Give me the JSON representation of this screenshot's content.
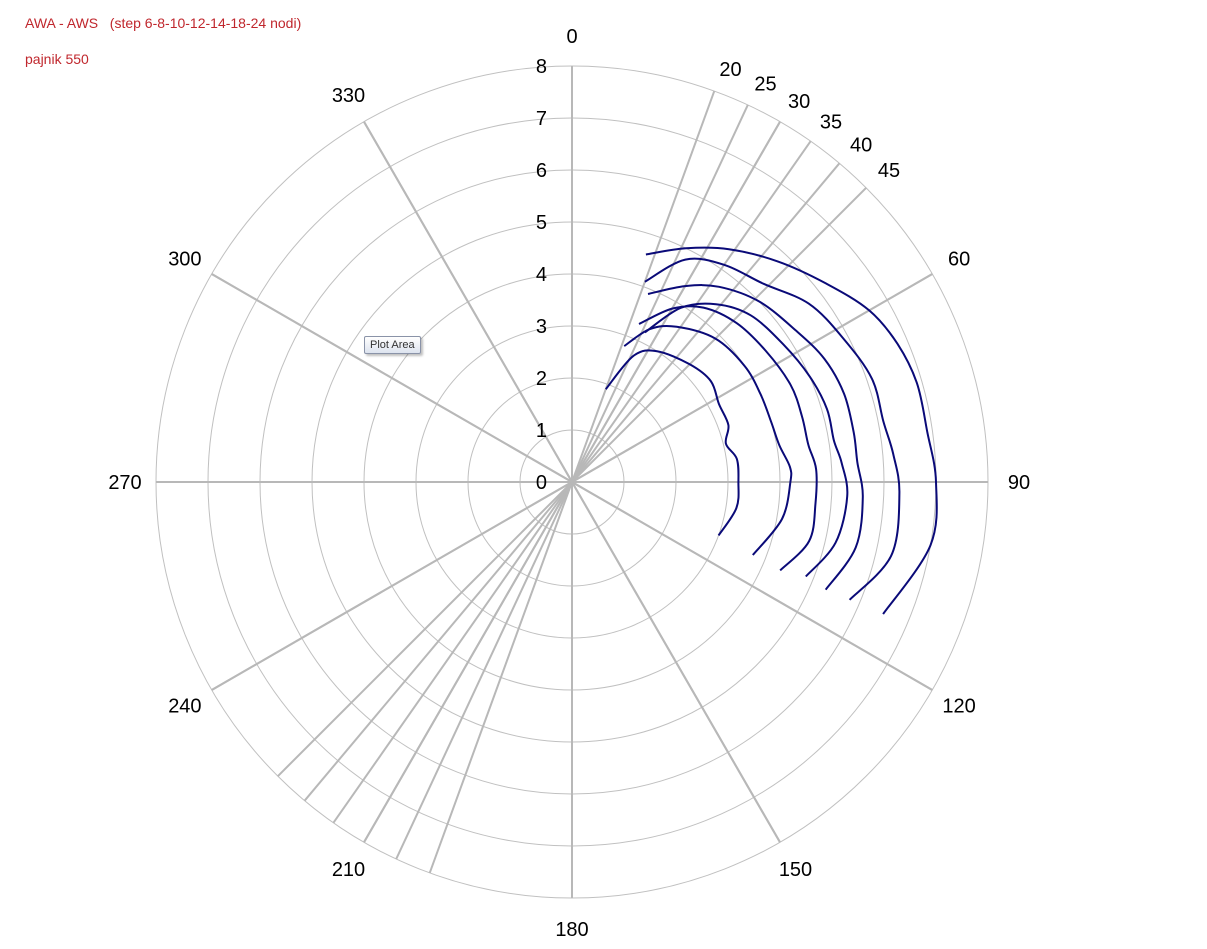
{
  "header": {
    "title": "AWA - AWS   (step 6-8-10-12-14-18-24 nodi)",
    "subtitle": "pajnik 550"
  },
  "tooltip": {
    "label": "Plot Area"
  },
  "colors": {
    "series": "#0a0a78",
    "grid": "#c0c0c0",
    "spoke": "#b8b8b8",
    "title": "#c0272d"
  },
  "chart_data": {
    "type": "polar-line",
    "title": "AWA - AWS   (step 6-8-10-12-14-18-24 nodi)",
    "subtitle": "pajnik 550",
    "radial_range": [
      0,
      8
    ],
    "radial_ticks": [
      0,
      1,
      2,
      3,
      4,
      5,
      6,
      7,
      8
    ],
    "angle_ticks": [
      0,
      20,
      25,
      30,
      35,
      40,
      45,
      60,
      90,
      120,
      150,
      180,
      210,
      240,
      270,
      300,
      330
    ],
    "grid": true,
    "legend": "none",
    "series": [
      {
        "points": [
          [
            20,
            1.9
          ],
          [
            26,
            2.7
          ],
          [
            33,
            3.0
          ],
          [
            45,
            3.2
          ],
          [
            54,
            3.3
          ],
          [
            62,
            3.2
          ],
          [
            70,
            3.2
          ],
          [
            76,
            3.05
          ],
          [
            82,
            3.2
          ],
          [
            90,
            3.2
          ],
          [
            99,
            3.2
          ],
          [
            110,
            3.0
          ]
        ]
      },
      {
        "points": [
          [
            21,
            2.8
          ],
          [
            27,
            3.3
          ],
          [
            34,
            3.6
          ],
          [
            45,
            3.9
          ],
          [
            56,
            4.0
          ],
          [
            65,
            4.0
          ],
          [
            73,
            4.0
          ],
          [
            80,
            4.05
          ],
          [
            86,
            4.2
          ],
          [
            90,
            4.2
          ],
          [
            100,
            4.1
          ],
          [
            112,
            3.75
          ]
        ]
      },
      {
        "points": [
          [
            23,
            3.3
          ],
          [
            30,
            3.85
          ],
          [
            37,
            4.2
          ],
          [
            46,
            4.4
          ],
          [
            56,
            4.5
          ],
          [
            66,
            4.6
          ],
          [
            74,
            4.6
          ],
          [
            81,
            4.6
          ],
          [
            87,
            4.7
          ],
          [
            95,
            4.7
          ],
          [
            104,
            4.7
          ],
          [
            113,
            4.35
          ]
        ]
      },
      {
        "points": [
          [
            26,
            3.2
          ],
          [
            32,
            3.95
          ],
          [
            39,
            4.4
          ],
          [
            47,
            4.7
          ],
          [
            57,
            4.85
          ],
          [
            66,
            5.0
          ],
          [
            74,
            5.1
          ],
          [
            81,
            5.1
          ],
          [
            86,
            5.2
          ],
          [
            93,
            5.3
          ],
          [
            103,
            5.2
          ],
          [
            112,
            4.85
          ]
        ]
      },
      {
        "points": [
          [
            22,
            3.9
          ],
          [
            30,
            4.35
          ],
          [
            37,
            4.7
          ],
          [
            46,
            5.0
          ],
          [
            56,
            5.2
          ],
          [
            64,
            5.4
          ],
          [
            72,
            5.5
          ],
          [
            80,
            5.5
          ],
          [
            86,
            5.5
          ],
          [
            93,
            5.6
          ],
          [
            103,
            5.6
          ],
          [
            113,
            5.3
          ]
        ]
      },
      {
        "points": [
          [
            20,
            4.1
          ],
          [
            27,
            4.8
          ],
          [
            35,
            5.1
          ],
          [
            44,
            5.3
          ],
          [
            53,
            5.7
          ],
          [
            62,
            5.9
          ],
          [
            71,
            6.1
          ],
          [
            79,
            6.1
          ],
          [
            85,
            6.2
          ],
          [
            92,
            6.3
          ],
          [
            103,
            6.3
          ],
          [
            113,
            5.8
          ]
        ]
      },
      {
        "points": [
          [
            18,
            4.6
          ],
          [
            26,
            5.0
          ],
          [
            34,
            5.4
          ],
          [
            43,
            5.8
          ],
          [
            52,
            6.2
          ],
          [
            60,
            6.6
          ],
          [
            67,
            6.8
          ],
          [
            74,
            6.9
          ],
          [
            82,
            6.9
          ],
          [
            90,
            7.0
          ],
          [
            100,
            7.0
          ],
          [
            113,
            6.5
          ]
        ]
      }
    ]
  }
}
